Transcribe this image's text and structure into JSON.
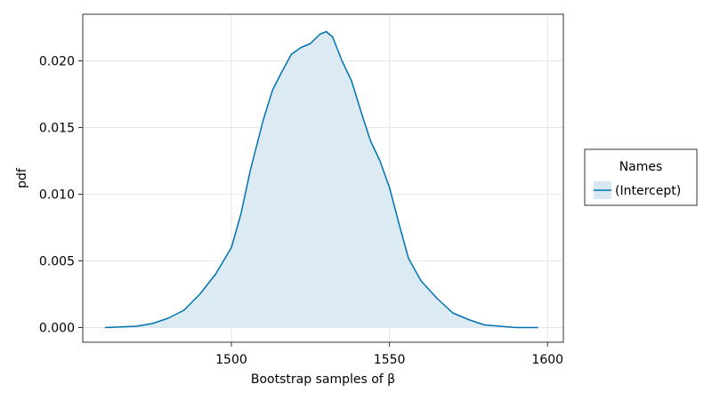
{
  "chart_data": {
    "type": "area",
    "title": "",
    "xlabel": "Bootstrap samples of β",
    "ylabel": "pdf",
    "xlim": [
      1453,
      1605
    ],
    "ylim": [
      -0.0011,
      0.0235
    ],
    "xticks": [
      1500,
      1550,
      1600
    ],
    "xtick_labels": [
      "1500",
      "1550",
      "1600"
    ],
    "yticks": [
      0.0,
      0.005,
      0.01,
      0.015,
      0.02
    ],
    "ytick_labels": [
      "0.000",
      "0.005",
      "0.010",
      "0.015",
      "0.020"
    ],
    "grid": true,
    "legend": {
      "title": "Names",
      "placement": "right",
      "entries": [
        "(Intercept)"
      ]
    },
    "colors": {
      "line": "#0072b2",
      "fill": "#d8e8f2",
      "grid": "#e6e6e6",
      "frame": "#333333"
    },
    "series": [
      {
        "name": "(Intercept)",
        "x": [
          1460,
          1470,
          1475,
          1480,
          1485,
          1490,
          1495,
          1500,
          1503,
          1506,
          1510,
          1513,
          1516,
          1519,
          1522,
          1525,
          1528,
          1530,
          1532,
          1535,
          1538,
          1541,
          1544,
          1547,
          1550,
          1553,
          1556,
          1560,
          1565,
          1570,
          1575,
          1580,
          1585,
          1590,
          1597
        ],
        "y": [
          0.0,
          0.0001,
          0.0003,
          0.0007,
          0.0013,
          0.0025,
          0.004,
          0.006,
          0.0085,
          0.0118,
          0.0155,
          0.0178,
          0.0192,
          0.0205,
          0.021,
          0.0213,
          0.022,
          0.0222,
          0.0218,
          0.02,
          0.0185,
          0.0162,
          0.014,
          0.0125,
          0.0105,
          0.0078,
          0.0052,
          0.0035,
          0.0022,
          0.0011,
          0.0006,
          0.0002,
          0.0001,
          0.0,
          0.0
        ]
      }
    ]
  }
}
